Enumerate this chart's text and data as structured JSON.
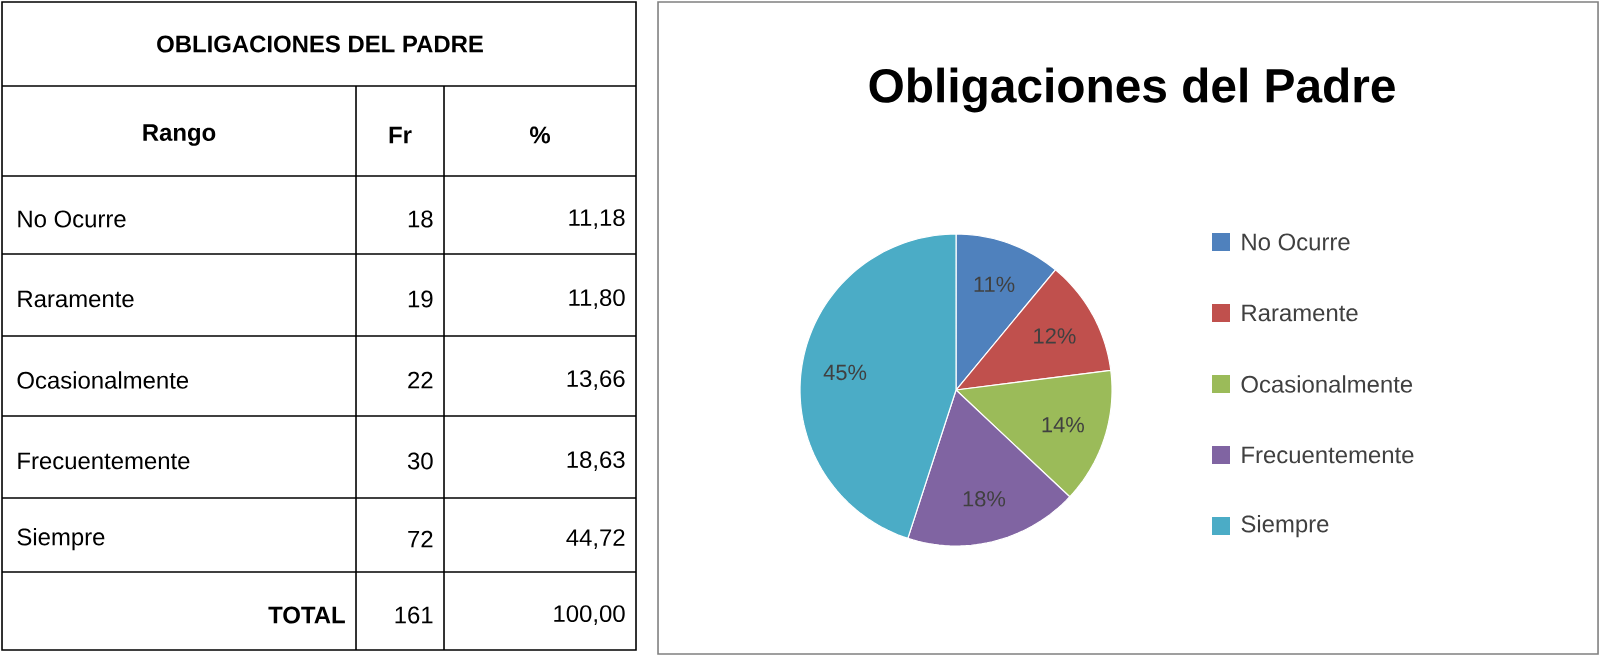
{
  "chart_data": [
    {
      "type": "other",
      "title": "OBLIGACIONES DEL PADRE",
      "annotations": [
        "Rango",
        "Fr",
        "%",
        "No Ocurre",
        "18",
        "11,18",
        "Raramente",
        "19",
        "11,80",
        "Ocasionalmente",
        "22",
        "13,66",
        "Frecuentemente",
        "30",
        "18,63",
        "Siempre",
        "72",
        "44,72",
        "TOTAL",
        "161",
        "100,00"
      ]
    },
    {
      "type": "pie",
      "title": "Obligaciones del Padre",
      "categories": [
        "No Ocurre",
        "Raramente",
        "Ocasionalmente",
        "Frecuentemente",
        "Siempre"
      ],
      "values": [
        11,
        12,
        14,
        18,
        45
      ],
      "value_labels": [
        "11%",
        "12%",
        "14%",
        "18%",
        "45%"
      ],
      "colors": [
        "#4f81bd",
        "#c0504d",
        "#9bbb59",
        "#8064a2",
        "#4bacc6"
      ],
      "legend": "right"
    }
  ]
}
